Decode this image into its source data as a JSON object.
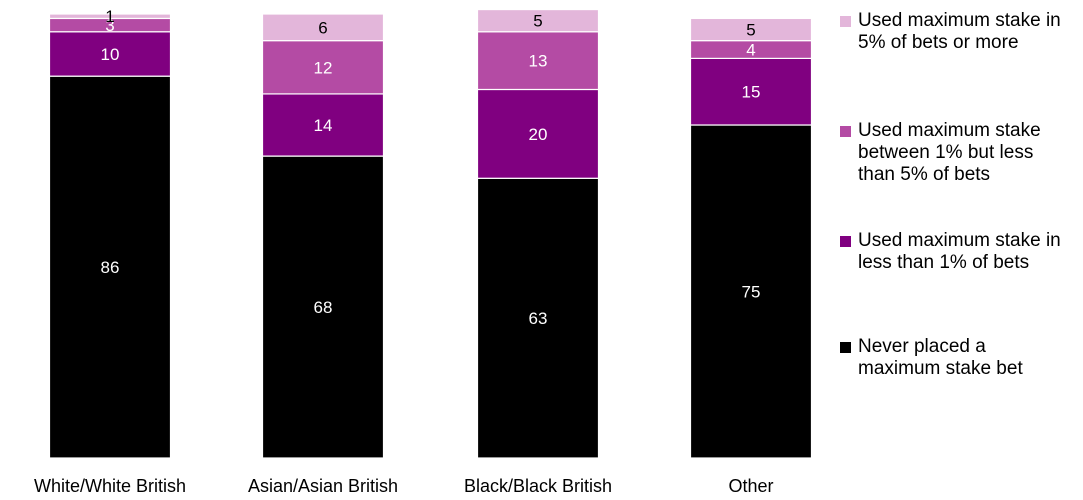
{
  "chart_data": {
    "type": "bar",
    "stacked": true,
    "categories": [
      "White/White British",
      "Asian/Asian British",
      "Black/Black British",
      "Other"
    ],
    "series": [
      {
        "name": "Never placed a maximum stake bet",
        "color": "#000000",
        "label_color": "#ffffff",
        "values": [
          86,
          68,
          63,
          75
        ]
      },
      {
        "name": "Used maximum stake in less than 1% of bets",
        "color": "#800080",
        "label_color": "#ffffff",
        "values": [
          10,
          14,
          20,
          15
        ]
      },
      {
        "name": "Used maximum stake between 1% but less than 5% of bets",
        "color": "#b44ba4",
        "label_color": "#ffffff",
        "values": [
          3,
          12,
          13,
          4
        ]
      },
      {
        "name": "Used maximum stake in 5% of bets or more",
        "color": "#e3b6da",
        "label_color": "#000000",
        "values": [
          1,
          6,
          5,
          5
        ]
      }
    ],
    "ylim": [
      0,
      100
    ],
    "grid": false,
    "legend_position": "right"
  }
}
